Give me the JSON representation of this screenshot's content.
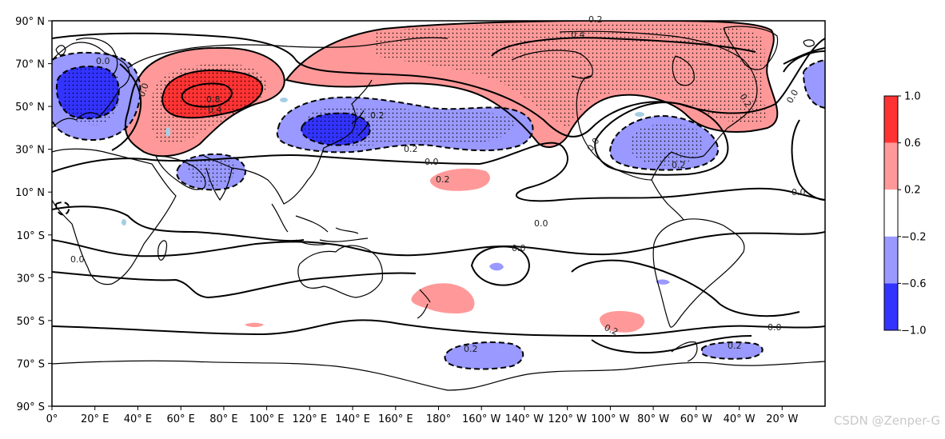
{
  "x_ticks": [
    "0°",
    "20° E",
    "40° E",
    "60° E",
    "80° E",
    "100° E",
    "120° E",
    "140° E",
    "160° E",
    "180°",
    "160° W",
    "140° W",
    "120° W",
    "100° W",
    "80° W",
    "60° W",
    "40° W",
    "20° W"
  ],
  "y_ticks": [
    "90° N",
    "70° N",
    "50° N",
    "30° N",
    "10° N",
    "10° S",
    "30° S",
    "50° S",
    "70° S",
    "90° S"
  ],
  "colorbar": {
    "ticks": [
      "1.0",
      "0.6",
      "0.2",
      "−0.2",
      "−0.6",
      "−1.0"
    ],
    "bins": [
      {
        "range": [
          0.6,
          1.0
        ],
        "color": "#ff3333"
      },
      {
        "range": [
          0.2,
          0.6
        ],
        "color": "#ff9999"
      },
      {
        "range": [
          -0.2,
          0.2
        ],
        "color": "#ffffff"
      },
      {
        "range": [
          -0.6,
          -0.2
        ],
        "color": "#9999ff"
      },
      {
        "range": [
          -1.0,
          -0.6
        ],
        "color": "#3333ff"
      }
    ]
  },
  "contour_labels": [
    "0.2",
    "0.4",
    "0.0",
    "0.8",
    "0.4",
    "0.2",
    "0.0",
    "0.2",
    "0.0",
    "0.2",
    "0.0",
    "0.0",
    "0.0",
    "0.0",
    "0.2",
    "0.0",
    "0.2",
    "0.2",
    "0.2",
    "0.2",
    "0.0",
    "0.0"
  ],
  "watermark": "CSDN @Zenper-G"
}
